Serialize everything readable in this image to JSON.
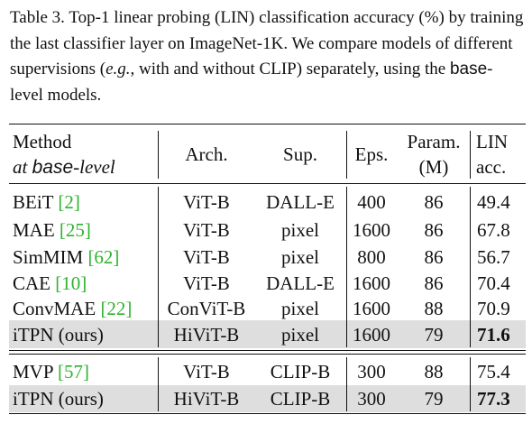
{
  "caption": {
    "p1": "Table 3.  Top-1 linear probing (LIN) classification accuracy (%) by training the last classifier layer on ImageNet-1K. We compare models of different supervisions (",
    "eg": "e.g.",
    "p2": ", with and without CLIP) separately, using the ",
    "base": "base",
    "p3": "-level models."
  },
  "header": {
    "method": "Method",
    "at": "at ",
    "base": "base",
    "level": "-level",
    "arch": "Arch.",
    "sup": "Sup.",
    "eps": "Eps.",
    "param": "Param.",
    "param_unit": "(M)",
    "lin": "LIN",
    "acc": "acc."
  },
  "rows": [
    {
      "name": "BEiT ",
      "ref": "[2]",
      "arch": "ViT-B",
      "sup": "DALL-E",
      "eps": "400",
      "param": "86",
      "acc": "49.4"
    },
    {
      "name": "MAE ",
      "ref": "[25]",
      "arch": "ViT-B",
      "sup": "pixel",
      "eps": "1600",
      "param": "86",
      "acc": "67.8"
    },
    {
      "name": "SimMIM ",
      "ref": "[62]",
      "arch": "ViT-B",
      "sup": "pixel",
      "eps": "800",
      "param": "86",
      "acc": "56.7"
    },
    {
      "name": "CAE ",
      "ref": "[10]",
      "arch": "ViT-B",
      "sup": "DALL-E",
      "eps": "1600",
      "param": "86",
      "acc": "70.4"
    },
    {
      "name": "ConvMAE ",
      "ref": "[22]",
      "arch": "ConViT-B",
      "sup": "pixel",
      "eps": "1600",
      "param": "88",
      "acc": "70.9"
    },
    {
      "name": "iTPN (ours)",
      "ref": "",
      "arch": "HiViT-B",
      "sup": "pixel",
      "eps": "1600",
      "param": "79",
      "acc": "71.6"
    },
    {
      "name": "MVP ",
      "ref": "[57]",
      "arch": "ViT-B",
      "sup": "CLIP-B",
      "eps": "300",
      "param": "88",
      "acc": "75.4"
    },
    {
      "name": "iTPN (ours)",
      "ref": "",
      "arch": "HiViT-B",
      "sup": "CLIP-B",
      "eps": "300",
      "param": "79",
      "acc": "77.3"
    }
  ]
}
